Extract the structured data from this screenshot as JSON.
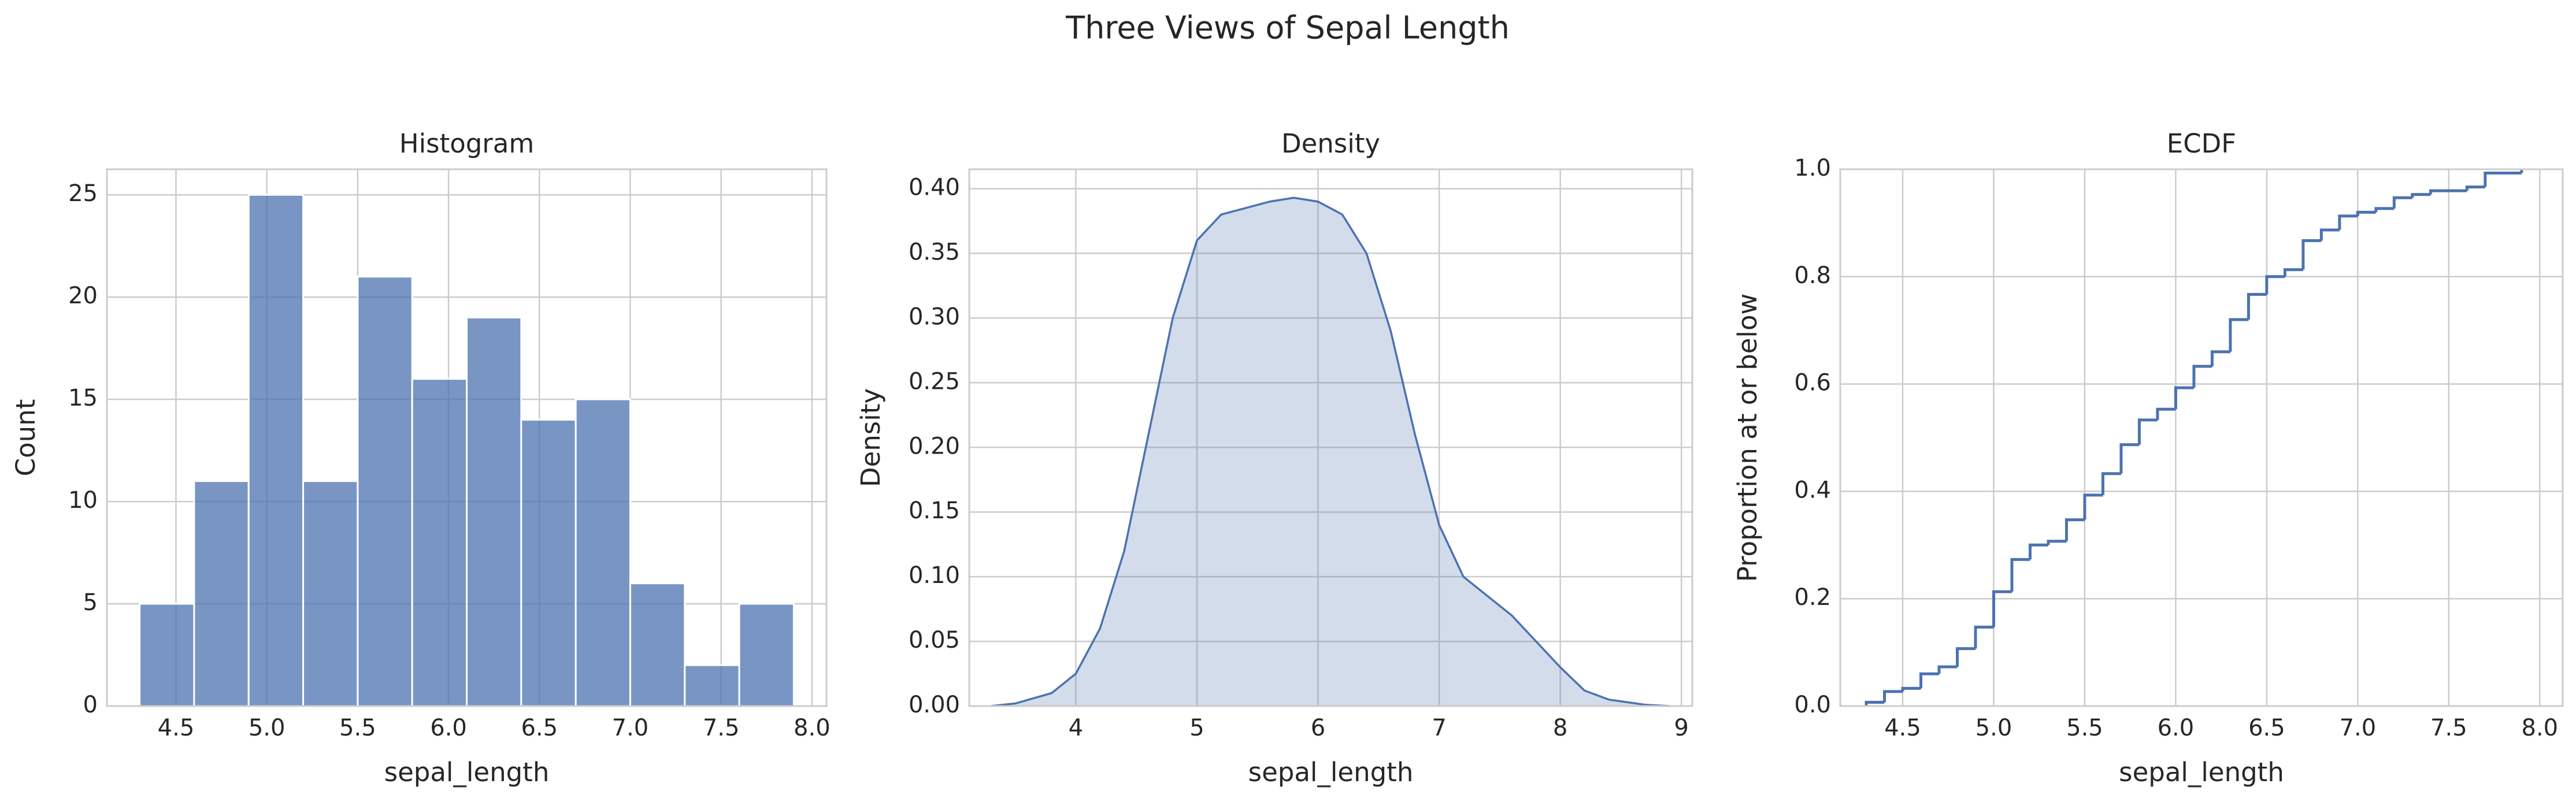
{
  "title": "Three Views of Sepal Length",
  "chart_data": [
    {
      "type": "histogram",
      "title": "Histogram",
      "xlabel": "sepal_length",
      "ylabel": "Count",
      "color": "#4c72b0",
      "bins": [
        4.3,
        4.6,
        4.9,
        5.2,
        5.5,
        5.8,
        6.1,
        6.4,
        6.7,
        7.0,
        7.3,
        7.6,
        7.9
      ],
      "values": [
        5,
        11,
        25,
        11,
        21,
        16,
        19,
        14,
        15,
        6,
        2,
        5
      ],
      "xlim": [
        4.12,
        8.08
      ],
      "ylim": [
        0,
        26.25
      ],
      "xticks": [
        4.5,
        {
          "value": 5,
          "label": "5.0"
        },
        5.5,
        {
          "value": 6,
          "label": "6.0"
        },
        6.5,
        {
          "value": 7,
          "label": "7.0"
        },
        7.5,
        {
          "value": 8,
          "label": "8.0"
        }
      ],
      "yticks": [
        0,
        5,
        10,
        15,
        20,
        25
      ],
      "grid": true
    },
    {
      "type": "area",
      "title": "Density",
      "xlabel": "sepal_length",
      "ylabel": "Density",
      "color": "#4c72b0",
      "x": [
        3.3,
        3.5,
        3.8,
        4.0,
        4.2,
        4.4,
        4.6,
        4.8,
        5.0,
        5.2,
        5.4,
        5.6,
        5.8,
        6.0,
        6.2,
        6.4,
        6.6,
        6.8,
        7.0,
        7.2,
        7.4,
        7.6,
        7.8,
        8.0,
        8.2,
        8.4,
        8.7,
        8.9
      ],
      "values": [
        0.0,
        0.002,
        0.01,
        0.025,
        0.06,
        0.12,
        0.21,
        0.3,
        0.36,
        0.38,
        0.385,
        0.39,
        0.393,
        0.39,
        0.38,
        0.35,
        0.29,
        0.21,
        0.14,
        0.1,
        0.085,
        0.07,
        0.05,
        0.03,
        0.012,
        0.005,
        0.001,
        0.0
      ],
      "xlim": [
        3.12,
        9.09
      ],
      "ylim": [
        0,
        0.415
      ],
      "xticks": [
        4,
        5,
        6,
        7,
        8,
        9
      ],
      "yticks": [
        {
          "value": 0,
          "label": "0.00"
        },
        {
          "value": 0.05,
          "label": "0.05"
        },
        {
          "value": 0.1,
          "label": "0.10"
        },
        {
          "value": 0.15,
          "label": "0.15"
        },
        {
          "value": 0.2,
          "label": "0.20"
        },
        {
          "value": 0.25,
          "label": "0.25"
        },
        {
          "value": 0.3,
          "label": "0.30"
        },
        {
          "value": 0.35,
          "label": "0.35"
        },
        {
          "value": 0.4,
          "label": "0.40"
        }
      ],
      "grid": true
    },
    {
      "type": "ecdf",
      "title": "ECDF",
      "xlabel": "sepal_length",
      "ylabel": "Proportion at or below",
      "color": "#4c72b0",
      "x": [
        4.3,
        4.4,
        4.5,
        4.6,
        4.7,
        4.8,
        4.9,
        5.0,
        5.1,
        5.2,
        5.3,
        5.4,
        5.5,
        5.6,
        5.7,
        5.8,
        5.9,
        6.0,
        6.1,
        6.2,
        6.3,
        6.4,
        6.5,
        6.6,
        6.7,
        6.8,
        6.9,
        7.0,
        7.1,
        7.2,
        7.3,
        7.4,
        7.6,
        7.7,
        7.9
      ],
      "values": [
        0.007,
        0.027,
        0.033,
        0.06,
        0.073,
        0.107,
        0.147,
        0.213,
        0.273,
        0.3,
        0.307,
        0.347,
        0.393,
        0.433,
        0.487,
        0.533,
        0.553,
        0.593,
        0.633,
        0.66,
        0.72,
        0.767,
        0.8,
        0.813,
        0.867,
        0.887,
        0.913,
        0.92,
        0.927,
        0.947,
        0.953,
        0.96,
        0.967,
        0.993,
        1.0
      ],
      "xlim": [
        4.157,
        8.126
      ],
      "ylim": [
        0,
        1.0
      ],
      "xticks": [
        4.5,
        {
          "value": 5,
          "label": "5.0"
        },
        5.5,
        {
          "value": 6,
          "label": "6.0"
        },
        6.5,
        {
          "value": 7,
          "label": "7.0"
        },
        7.5,
        {
          "value": 8,
          "label": "8.0"
        }
      ],
      "yticks": [
        {
          "value": 0,
          "label": "0.0"
        },
        0.2,
        0.4,
        0.6,
        0.8,
        {
          "value": 1,
          "label": "1.0"
        }
      ],
      "grid": true
    }
  ]
}
